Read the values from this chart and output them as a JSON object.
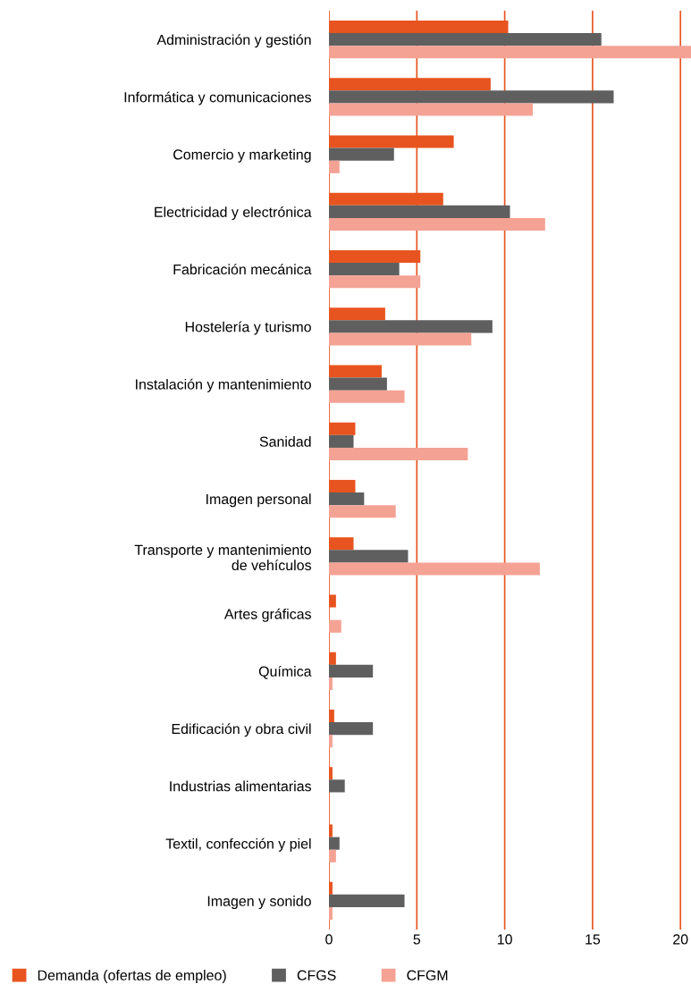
{
  "chart_data": {
    "type": "bar",
    "orientation": "horizontal",
    "categories": [
      "Administración y gestión",
      "Informática y comunicaciones",
      "Comercio y marketing",
      "Electricidad y electrónica",
      "Fabricación mecánica",
      "Hostelería y turismo",
      "Instalación y mantenimiento",
      "Sanidad",
      "Imagen personal",
      "Transporte y mantenimiento\nde vehículos",
      "Artes gráficas",
      "Química",
      "Edificación y obra civil",
      "Industrias alimentarias",
      "Textil, confección y piel",
      "Imagen y sonido"
    ],
    "series": [
      {
        "name": "Demanda (ofertas de empleo)",
        "color": "#e8541f",
        "values": [
          10.2,
          9.2,
          7.1,
          6.5,
          5.2,
          3.2,
          3.0,
          1.5,
          1.5,
          1.4,
          0.4,
          0.4,
          0.3,
          0.2,
          0.2,
          0.2
        ]
      },
      {
        "name": "CFGS",
        "color": "#5f5f5f",
        "values": [
          15.5,
          16.2,
          3.7,
          10.3,
          4.0,
          9.3,
          3.3,
          1.4,
          2.0,
          4.5,
          0,
          2.5,
          2.5,
          0.9,
          0.6,
          4.3
        ]
      },
      {
        "name": "CFGM",
        "color": "#f4a294",
        "values": [
          20.6,
          11.6,
          0.6,
          12.3,
          5.2,
          8.1,
          4.3,
          7.9,
          3.8,
          12.0,
          0.7,
          0.2,
          0.2,
          0,
          0.4,
          0.2
        ]
      }
    ],
    "xlim": [
      0,
      20.6
    ],
    "xticks": [
      0,
      5,
      10,
      15,
      20
    ],
    "grid": "x",
    "legend": "bottom"
  }
}
